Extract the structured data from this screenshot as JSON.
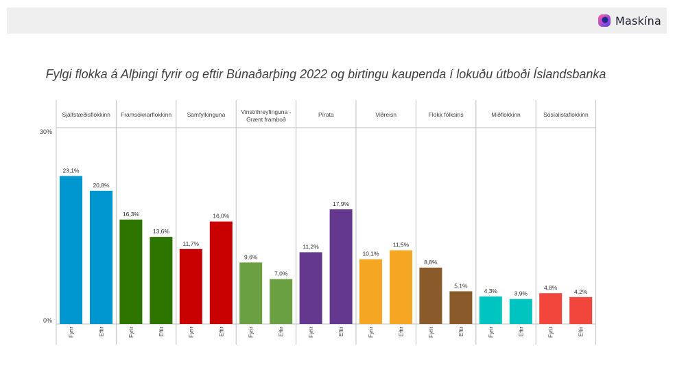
{
  "header": {
    "brand": "Maskína"
  },
  "chart_data": {
    "type": "bar",
    "title": "Fylgi flokka á Alþingi fyrir og eftir Búnaðarþing 2022 og birtingu kaupenda í lokuðu útboði Íslandsbanka",
    "ylim": [
      0,
      30
    ],
    "yticks": [
      "0%",
      "30%"
    ],
    "bar_labels": [
      "Fyrir",
      "Eftir"
    ],
    "grid": false,
    "groups": [
      {
        "name": "Sjálfstæðisflokkinn",
        "values": [
          23.1,
          20.8
        ],
        "labels": [
          "23,1%",
          "20,8%"
        ],
        "color": "#0097d0"
      },
      {
        "name": "Framsóknarflokkinn",
        "values": [
          16.3,
          13.6
        ],
        "labels": [
          "16,3%",
          "13,6%"
        ],
        "color": "#2e7500"
      },
      {
        "name": "Samfylkinguna",
        "values": [
          11.7,
          16.0
        ],
        "labels": [
          "11,7%",
          "16,0%"
        ],
        "color": "#c80000"
      },
      {
        "name": "Vinstrihreyfinguna - Grænt framboð",
        "lines": [
          "Vinstrihreyfinguna -",
          "Grænt framboð"
        ],
        "values": [
          9.6,
          7.0
        ],
        "labels": [
          "9,6%",
          "7,0%"
        ],
        "color": "#6a9f42"
      },
      {
        "name": "Pírata",
        "values": [
          11.2,
          17.9
        ],
        "labels": [
          "11,2%",
          "17,9%"
        ],
        "color": "#64388e"
      },
      {
        "name": "Viðreisn",
        "values": [
          10.1,
          11.5
        ],
        "labels": [
          "10,1%",
          "11,5%"
        ],
        "color": "#f5a623"
      },
      {
        "name": "Flokk fólksins",
        "values": [
          8.8,
          5.1
        ],
        "labels": [
          "8,8%",
          "5,1%"
        ],
        "color": "#8b5a2b"
      },
      {
        "name": "Miðflokkinn",
        "values": [
          4.3,
          3.9
        ],
        "labels": [
          "4,3%",
          "3,9%"
        ],
        "color": "#00c4c0"
      },
      {
        "name": "Sósíalistaflokkinn",
        "values": [
          4.8,
          4.2
        ],
        "labels": [
          "4,8%",
          "4,2%"
        ],
        "color": "#f2463c"
      }
    ]
  }
}
